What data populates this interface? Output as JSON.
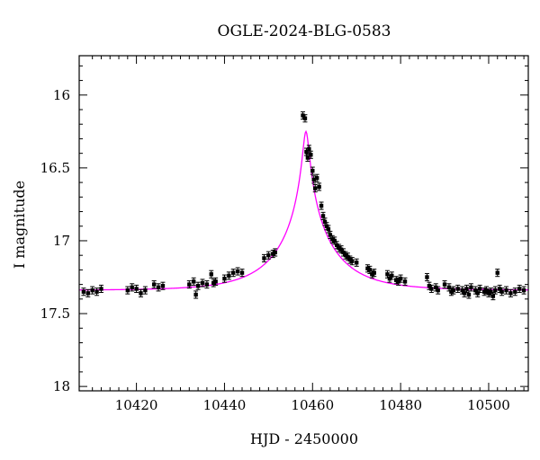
{
  "chart_data": {
    "type": "scatter",
    "title": "OGLE-2024-BLG-0583",
    "xlabel": "HJD - 2450000",
    "ylabel": "I magnitude",
    "xlim": [
      10407,
      10509
    ],
    "ylim": [
      18.03,
      15.73
    ],
    "y_inverted": true,
    "xticks": [
      10420,
      10440,
      10460,
      10480,
      10500
    ],
    "yticks": [
      16,
      16.5,
      17,
      17.5,
      18
    ],
    "ytick_labels": [
      "16",
      "16.5",
      "17",
      "17.5",
      "18"
    ],
    "grid": false,
    "model_color": "#ff00ff",
    "point_color": "#000000",
    "model": {
      "t0": 10458.5,
      "tE": 13,
      "u0": 0.05,
      "baseline_mag": 17.34,
      "peak_mag": 16.25
    },
    "points": [
      [
        10408.0,
        17.35
      ],
      [
        10409.0,
        17.36
      ],
      [
        10410.0,
        17.34
      ],
      [
        10411.0,
        17.35
      ],
      [
        10412.0,
        17.33
      ],
      [
        10418.0,
        17.34
      ],
      [
        10419.0,
        17.32
      ],
      [
        10420.0,
        17.33
      ],
      [
        10421.0,
        17.36
      ],
      [
        10422.0,
        17.34
      ],
      [
        10424.0,
        17.3
      ],
      [
        10425.0,
        17.32
      ],
      [
        10426.0,
        17.31
      ],
      [
        10432.0,
        17.3
      ],
      [
        10433.0,
        17.28
      ],
      [
        10433.5,
        17.37
      ],
      [
        10434.0,
        17.31
      ],
      [
        10435.0,
        17.29
      ],
      [
        10436.0,
        17.3
      ],
      [
        10437.0,
        17.23
      ],
      [
        10437.5,
        17.29
      ],
      [
        10438.0,
        17.28
      ],
      [
        10440.0,
        17.26
      ],
      [
        10441.0,
        17.24
      ],
      [
        10442.0,
        17.22
      ],
      [
        10443.0,
        17.21
      ],
      [
        10444.0,
        17.22
      ],
      [
        10449.0,
        17.12
      ],
      [
        10450.0,
        17.1
      ],
      [
        10451.0,
        17.09
      ],
      [
        10451.5,
        17.08
      ],
      [
        10457.8,
        16.14
      ],
      [
        10458.3,
        16.16
      ],
      [
        10458.6,
        16.39
      ],
      [
        10458.9,
        16.43
      ],
      [
        10459.2,
        16.37
      ],
      [
        10459.6,
        16.41
      ],
      [
        10460.0,
        16.52
      ],
      [
        10460.3,
        16.58
      ],
      [
        10460.6,
        16.64
      ],
      [
        10461.0,
        16.57
      ],
      [
        10461.5,
        16.63
      ],
      [
        10462.0,
        16.76
      ],
      [
        10462.4,
        16.83
      ],
      [
        10462.8,
        16.87
      ],
      [
        10463.2,
        16.9
      ],
      [
        10463.6,
        16.92
      ],
      [
        10464.0,
        16.96
      ],
      [
        10464.5,
        16.99
      ],
      [
        10465.0,
        17.0
      ],
      [
        10465.5,
        17.03
      ],
      [
        10466.0,
        17.05
      ],
      [
        10466.5,
        17.06
      ],
      [
        10467.0,
        17.08
      ],
      [
        10467.5,
        17.1
      ],
      [
        10468.0,
        17.11
      ],
      [
        10468.5,
        17.13
      ],
      [
        10469.0,
        17.14
      ],
      [
        10470.0,
        17.15
      ],
      [
        10472.5,
        17.19
      ],
      [
        10473.0,
        17.2
      ],
      [
        10473.5,
        17.23
      ],
      [
        10474.0,
        17.22
      ],
      [
        10477.0,
        17.23
      ],
      [
        10477.5,
        17.26
      ],
      [
        10478.0,
        17.24
      ],
      [
        10479.0,
        17.27
      ],
      [
        10479.5,
        17.28
      ],
      [
        10480.0,
        17.26
      ],
      [
        10481.0,
        17.28
      ],
      [
        10486.0,
        17.25
      ],
      [
        10486.5,
        17.31
      ],
      [
        10487.0,
        17.33
      ],
      [
        10488.0,
        17.32
      ],
      [
        10488.5,
        17.34
      ],
      [
        10490.0,
        17.3
      ],
      [
        10491.0,
        17.32
      ],
      [
        10491.5,
        17.35
      ],
      [
        10492.0,
        17.34
      ],
      [
        10493.0,
        17.33
      ],
      [
        10494.0,
        17.34
      ],
      [
        10494.5,
        17.36
      ],
      [
        10495.0,
        17.33
      ],
      [
        10495.5,
        17.37
      ],
      [
        10496.0,
        17.32
      ],
      [
        10497.0,
        17.34
      ],
      [
        10497.5,
        17.36
      ],
      [
        10498.0,
        17.33
      ],
      [
        10499.0,
        17.35
      ],
      [
        10499.5,
        17.34
      ],
      [
        10500.0,
        17.36
      ],
      [
        10500.5,
        17.35
      ],
      [
        10501.0,
        17.38
      ],
      [
        10501.5,
        17.34
      ],
      [
        10502.0,
        17.22
      ],
      [
        10502.5,
        17.33
      ],
      [
        10503.0,
        17.35
      ],
      [
        10504.0,
        17.34
      ],
      [
        10505.0,
        17.36
      ],
      [
        10506.0,
        17.35
      ],
      [
        10507.0,
        17.33
      ],
      [
        10508.0,
        17.34
      ]
    ],
    "error": 0.025
  }
}
